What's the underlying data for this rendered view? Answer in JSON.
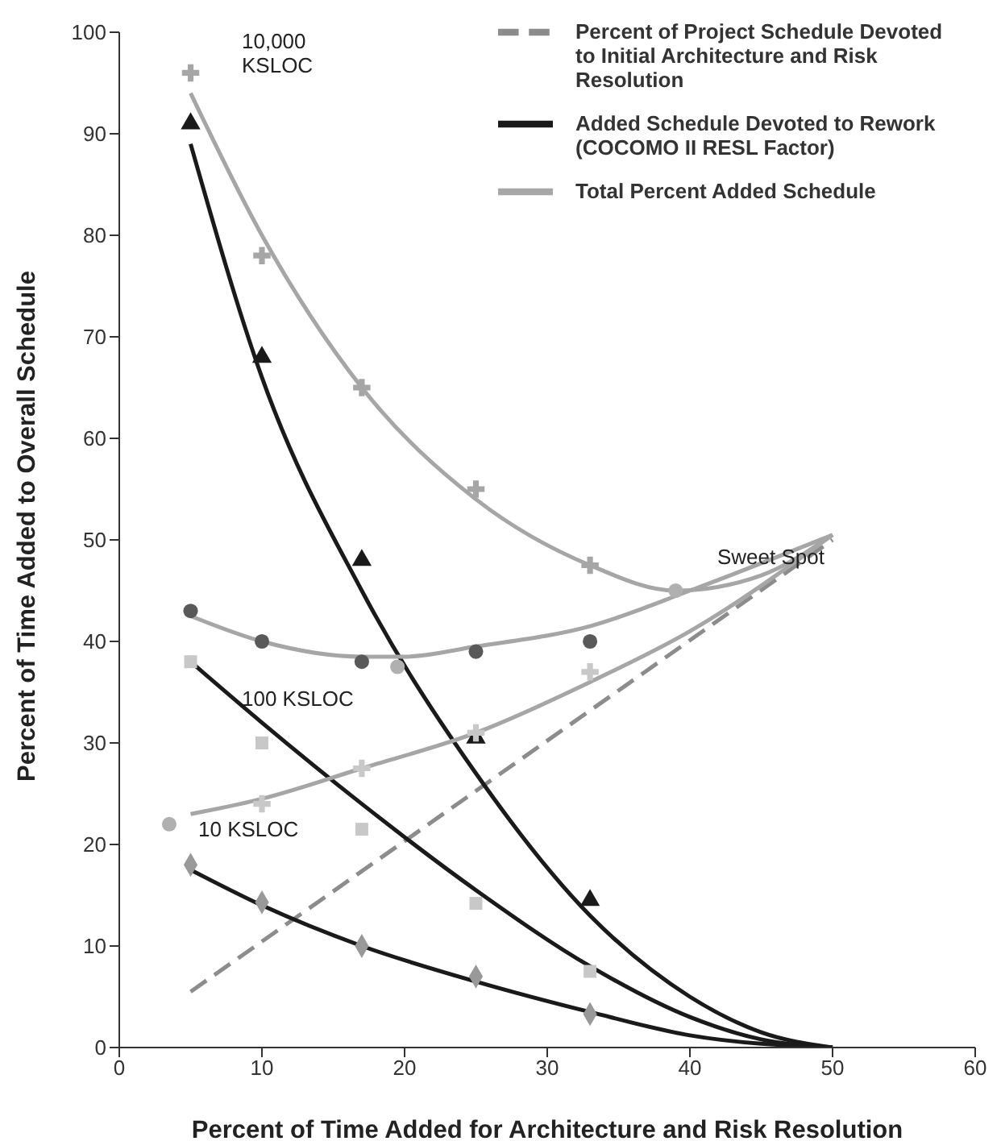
{
  "chart_data": {
    "type": "line",
    "xlabel": "Percent of Time Added for Architecture and Risk Resolution",
    "ylabel": "Percent of Time Added to Overall Schedule",
    "xlim": [
      0,
      60
    ],
    "xticks": [
      0,
      10,
      20,
      30,
      40,
      50,
      60
    ],
    "ylim": [
      0,
      100
    ],
    "yticks": [
      0,
      10,
      20,
      30,
      40,
      50,
      60,
      70,
      80,
      90,
      100
    ],
    "grid": false,
    "legend": "top right",
    "series": [
      {
        "name": "Percent of Project Schedule Devoted to Initial Architecture and Risk Resolution",
        "line_style": "dashed",
        "color": "#8c8c8c",
        "x": [
          5,
          50
        ],
        "values": [
          5.5,
          50
        ]
      },
      {
        "name": "Added Schedule Devoted to Rework (COCOMO II RESL Factor)",
        "color": "#1a1a1a",
        "x": [
          5,
          10,
          17,
          25,
          33,
          40,
          45,
          50
        ],
        "values": [
          89,
          66,
          45,
          27,
          13,
          5,
          1.5,
          0
        ]
      },
      {
        "name": "Total Percent Added Schedule",
        "color": "#a6a6a6",
        "x": [
          5,
          10,
          17,
          25,
          33,
          39,
          45,
          50
        ],
        "values": [
          94,
          80,
          65,
          54,
          47.5,
          45,
          46.5,
          50.5
        ]
      },
      {
        "type": "line",
        "color": "#1a1a1a",
        "x": [
          5,
          10,
          17,
          25,
          33,
          40,
          45,
          50
        ],
        "values": [
          38,
          32,
          24,
          15.5,
          8,
          3,
          0.8,
          0
        ]
      },
      {
        "type": "line",
        "color": "#a6a6a6",
        "x": [
          5,
          10,
          17,
          20,
          25,
          33,
          40,
          50
        ],
        "values": [
          42.5,
          40,
          38.5,
          38.5,
          39.5,
          41.5,
          45,
          50.5
        ]
      },
      {
        "type": "line",
        "color": "#1a1a1a",
        "x": [
          5,
          10,
          17,
          25,
          33,
          40,
          50
        ],
        "values": [
          17.5,
          14,
          10,
          6.5,
          3.5,
          1.2,
          0
        ]
      },
      {
        "type": "line",
        "color": "#a6a6a6",
        "x": [
          5,
          10,
          17,
          25,
          33,
          40,
          50
        ],
        "values": [
          23,
          24.5,
          27.5,
          31,
          36,
          41,
          50.5
        ]
      },
      {
        "type": "scatter",
        "marker": "triangle",
        "color": "#1a1a1a",
        "x": [
          5,
          10,
          17,
          25,
          33
        ],
        "values": [
          91,
          68,
          48,
          30.5,
          14.5
        ]
      },
      {
        "type": "scatter",
        "marker": "cross",
        "color": "#a6a6a6",
        "x": [
          5,
          10,
          17,
          25,
          33
        ],
        "values": [
          96,
          78,
          65,
          55,
          47.5
        ]
      },
      {
        "type": "scatter",
        "marker": "square",
        "color": "#c8c8c8",
        "x": [
          5,
          10,
          17,
          25,
          33
        ],
        "values": [
          38,
          30,
          21.5,
          14.2,
          7.5
        ]
      },
      {
        "type": "scatter",
        "marker": "circle",
        "color": "#595959",
        "x": [
          5,
          10,
          17,
          25,
          33
        ],
        "values": [
          43,
          40,
          38,
          39,
          40
        ]
      },
      {
        "type": "scatter",
        "marker": "diamond",
        "color": "#999999",
        "x": [
          5,
          10,
          17,
          25,
          33
        ],
        "values": [
          18,
          14.3,
          10,
          7,
          3.3
        ]
      },
      {
        "type": "scatter",
        "marker": "cross",
        "color": "#c8c8c8",
        "x": [
          10,
          17,
          25,
          33
        ],
        "values": [
          24,
          27.5,
          31,
          37
        ]
      },
      {
        "type": "scatter",
        "marker": "circle",
        "color": "#b0b0b0",
        "x": [
          3.5,
          19.5,
          39
        ],
        "values": [
          22,
          37.5,
          45
        ]
      }
    ],
    "annotations": [
      "10,000 KSLOC",
      "100 KSLOC",
      "10 KSLOC",
      "Sweet Spot"
    ]
  }
}
